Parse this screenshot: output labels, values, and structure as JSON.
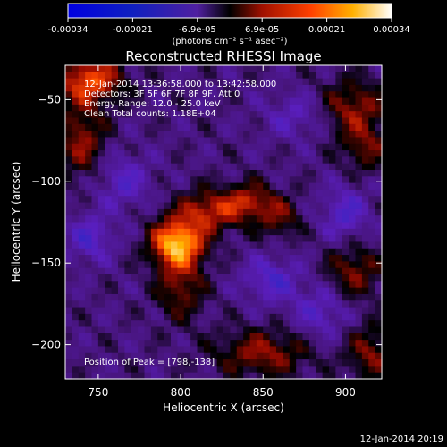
{
  "chart_data": {
    "type": "heatmap",
    "title": "Reconstructed RHESSI Image",
    "xlabel": "Heliocentric X (arcsec)",
    "ylabel": "Heliocentric Y (arcsec)",
    "xlim": [
      730,
      922
    ],
    "ylim": [
      -221,
      -29
    ],
    "x_ticks": [
      750,
      800,
      850,
      900
    ],
    "y_ticks": [
      -50,
      -100,
      -150,
      -200
    ],
    "colorbar": {
      "ticks": [
        "-0.00034",
        "-0.00021",
        "-6.9e-05",
        "6.9e-05",
        "0.00021",
        "0.00034"
      ],
      "units": "(photons cm⁻² s⁻¹ asec⁻²)",
      "range": [
        -0.00034,
        0.00034
      ]
    },
    "annotations": [
      "12-Jan-2014 13:36:58.000 to 13:42:58.000",
      "Detectors: 3F 5F 6F 7F 8F 9F, Att 0",
      "Energy Range: 12.0 - 25.0 keV",
      "Clean    Total counts: 1.18E+04"
    ],
    "peak_label": "Position of Peak = [798,-138]",
    "peak": {
      "x": 798,
      "y": -138
    },
    "sources": [
      {
        "x": 798,
        "y": -138,
        "sx": 11,
        "sy": 10,
        "amp": 1.0
      },
      {
        "x": 818,
        "y": -118,
        "sx": 14,
        "sy": 9,
        "amp": 0.55
      },
      {
        "x": 842,
        "y": -112,
        "sx": 10,
        "sy": 8,
        "amp": 0.45
      },
      {
        "x": 860,
        "y": -122,
        "sx": 9,
        "sy": 9,
        "amp": 0.35
      },
      {
        "x": 745,
        "y": -38,
        "sx": 14,
        "sy": 10,
        "amp": 0.7
      },
      {
        "x": 740,
        "y": -75,
        "sx": 10,
        "sy": 16,
        "amp": 0.45
      },
      {
        "x": 905,
        "y": -55,
        "sx": 14,
        "sy": 12,
        "amp": 0.45
      },
      {
        "x": 912,
        "y": -80,
        "sx": 10,
        "sy": 10,
        "amp": 0.35
      },
      {
        "x": 905,
        "y": -155,
        "sx": 12,
        "sy": 12,
        "amp": 0.4
      },
      {
        "x": 915,
        "y": -205,
        "sx": 10,
        "sy": 12,
        "amp": 0.4
      },
      {
        "x": 850,
        "y": -205,
        "sx": 20,
        "sy": 10,
        "amp": 0.45
      },
      {
        "x": 800,
        "y": -165,
        "sx": 10,
        "sy": 14,
        "amp": 0.4
      },
      {
        "x": 765,
        "y": -100,
        "sx": 12,
        "sy": 12,
        "amp": -0.3
      },
      {
        "x": 745,
        "y": -135,
        "sx": 10,
        "sy": 10,
        "amp": -0.35
      },
      {
        "x": 855,
        "y": -160,
        "sx": 12,
        "sy": 10,
        "amp": -0.35
      },
      {
        "x": 900,
        "y": -120,
        "sx": 10,
        "sy": 12,
        "amp": -0.35
      },
      {
        "x": 870,
        "y": -60,
        "sx": 14,
        "sy": 10,
        "amp": -0.25
      },
      {
        "x": 885,
        "y": -180,
        "sx": 12,
        "sy": 12,
        "amp": -0.3
      }
    ]
  },
  "footer": {
    "timestamp": "12-Jan-2014 20:19"
  }
}
